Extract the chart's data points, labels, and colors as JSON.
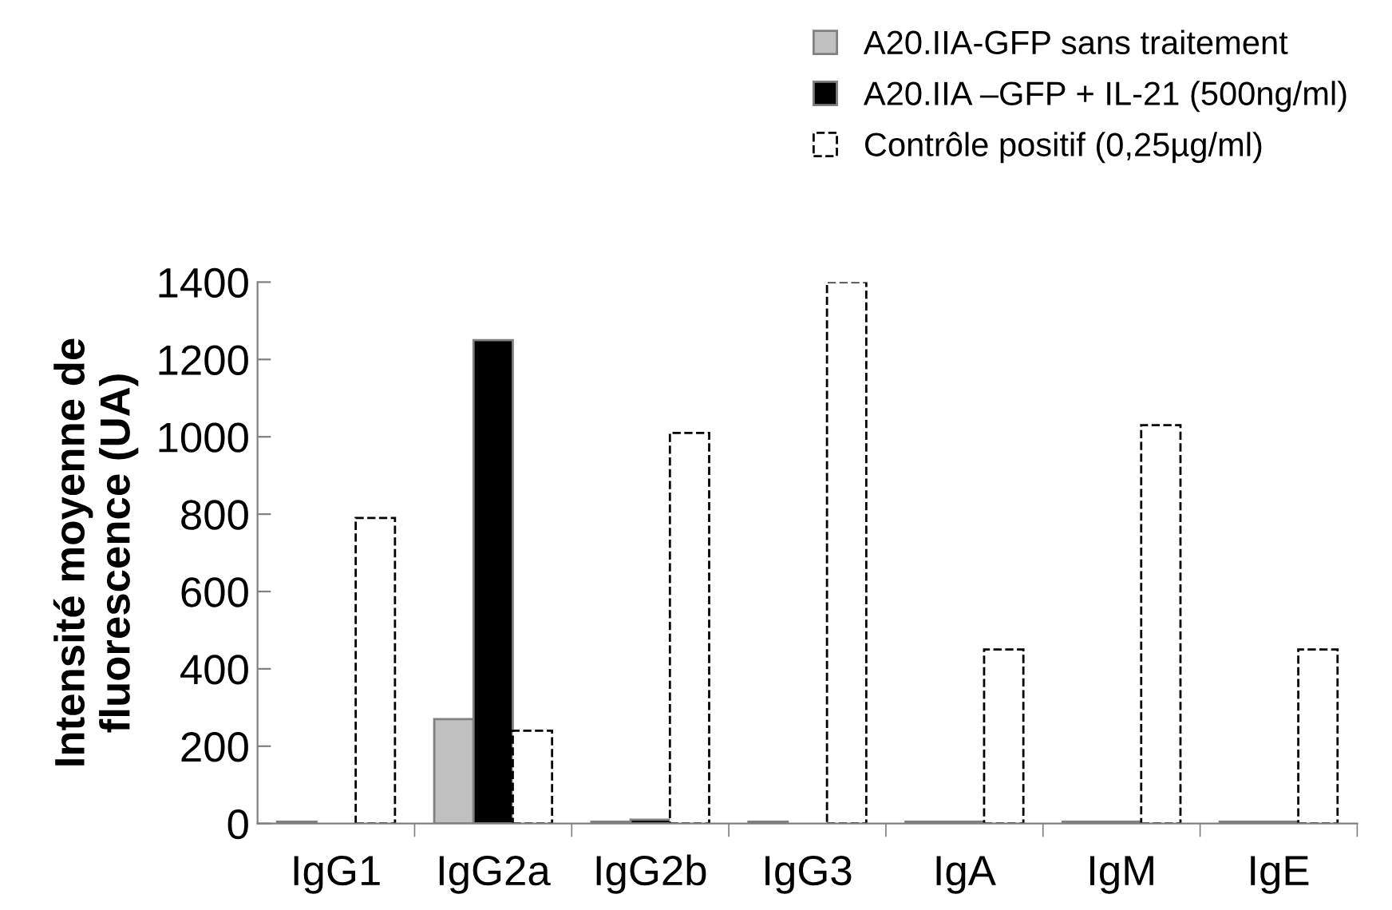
{
  "chart_data": {
    "type": "bar",
    "ylabel": "Intensité moyenne de\nfluorescence (UA)",
    "categories": [
      "IgG1",
      "IgG2a",
      "IgG2b",
      "IgG3",
      "IgA",
      "IgM",
      "IgE"
    ],
    "series": [
      {
        "name": "A20.IIA-GFP sans traitement",
        "color": "#c0c0c0",
        "values": [
          5,
          270,
          5,
          5,
          5,
          5,
          5
        ]
      },
      {
        "name": "A20.IIA –GFP + IL-21 (500ng/ml)",
        "color": "#000000",
        "values": [
          null,
          1250,
          10,
          null,
          5,
          5,
          5
        ]
      },
      {
        "name": "Contrôle positif (0,25µg/ml)",
        "color": "#ffffff",
        "line_style": "dashed",
        "values": [
          790,
          240,
          1010,
          1400,
          450,
          1030,
          450
        ]
      }
    ],
    "ylim": [
      0,
      1400
    ],
    "yticks": [
      0,
      200,
      400,
      600,
      800,
      1000,
      1200,
      1400
    ],
    "grid": false,
    "legend": "top right"
  }
}
